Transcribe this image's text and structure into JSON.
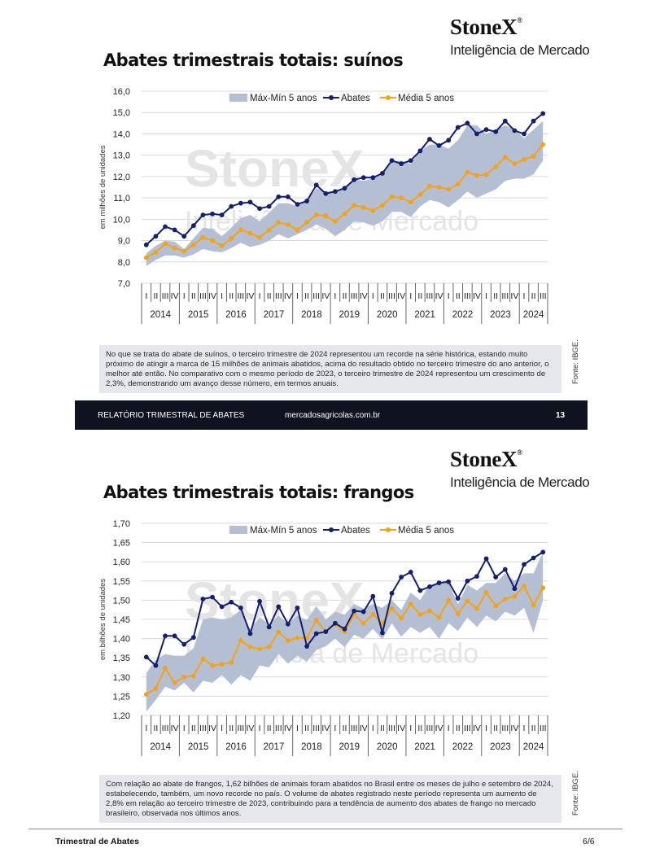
{
  "brand": {
    "name": "StoneX",
    "mark": "®",
    "tagline": "Inteligência de Mercado"
  },
  "colors": {
    "band": "#b4bfd3",
    "abates": "#14206e",
    "media": "#f3a31b",
    "footer_bg": "#0f1320",
    "note_bg": "#e5e7ea"
  },
  "chart1": {
    "title": "Abates trimestrais totais: suínos",
    "ylabel": "em milhões de unidades",
    "watermark_line1": "StoneX",
    "watermark_line2": "Inteligência de Mercado",
    "note": "No que se trata do abate de suínos, o terceiro trimestre de 2024 representou um recorde na série histórica, estando muito próximo de atingir a marca de 15 milhões de animais abatidos, acima do resultado obtido no terceiro trimestre do ano anterior, o melhor até então. No comparativo com o mesmo período de 2023, o terceiro trimestre de 2024 representou um crescimento de 2,3%, demonstrando um avanço desse número, em termos anuais.",
    "source": "Fonte: IBGE."
  },
  "footer1": {
    "left": "RELATÓRIO TRIMESTRAL DE ABATES",
    "center": "mercadosagricolas.com.br",
    "page": "13"
  },
  "chart2": {
    "title": "Abates trimestrais totais: frangos",
    "ylabel": "em bilhões de unidades",
    "watermark_line1": "StoneX",
    "watermark_line2": "Inteligência de Mercado",
    "note": "Com relação ao abate de frangos, 1,62 bilhões de animais foram abatidos no Brasil entre os meses de julho e setembro de 2024, estabelecendo, também, um novo recorde no país. O volume de abates registrado neste período representa um aumento de 2,8% em relação ao terceiro trimestre de 2023, contribuindo para a tendência de aumento dos abates de frango no mercado brasileiro, observada nos últimos anos.",
    "source": "Fonte: IBGE."
  },
  "footer2": {
    "left": "Trimestral de Abates",
    "page": "6/6"
  },
  "chart_data": [
    {
      "type": "line",
      "title": "Abates trimestrais totais: suínos",
      "ylabel": "em milhões de unidades",
      "ylim": [
        7.0,
        16.0
      ],
      "yticks": [
        "7,0",
        "8,0",
        "9,0",
        "10,0",
        "11,0",
        "12,0",
        "13,0",
        "14,0",
        "15,0",
        "16,0"
      ],
      "years": [
        "2014",
        "2015",
        "2016",
        "2017",
        "2018",
        "2019",
        "2020",
        "2021",
        "2022",
        "2023",
        "2024"
      ],
      "quarters": [
        "I",
        "II",
        "III",
        "IV"
      ],
      "legend": {
        "band": "Máx-Mín 5 anos",
        "abates": "Abates",
        "media": "Média 5 anos"
      },
      "legend_position": "top",
      "grid": true,
      "abates": [
        8.8,
        9.2,
        9.65,
        9.5,
        9.2,
        9.7,
        10.2,
        10.25,
        10.2,
        10.6,
        10.75,
        10.8,
        10.5,
        10.6,
        11.05,
        11.05,
        10.7,
        10.85,
        11.6,
        11.2,
        11.3,
        11.45,
        11.85,
        11.95,
        11.95,
        12.15,
        12.75,
        12.6,
        12.75,
        13.2,
        13.75,
        13.45,
        13.7,
        14.3,
        14.5,
        14.0,
        14.2,
        14.1,
        14.6,
        14.15,
        14.0,
        14.6,
        14.95
      ],
      "media": [
        8.2,
        8.45,
        8.85,
        8.65,
        8.5,
        8.8,
        9.15,
        9.0,
        8.75,
        9.1,
        9.5,
        9.35,
        9.15,
        9.5,
        9.85,
        9.75,
        9.5,
        9.85,
        10.2,
        10.15,
        9.9,
        10.25,
        10.65,
        10.55,
        10.4,
        10.65,
        11.05,
        11.0,
        10.8,
        11.15,
        11.55,
        11.5,
        11.4,
        11.65,
        12.2,
        12.05,
        12.1,
        12.45,
        12.9,
        12.6,
        12.8,
        12.95,
        13.5
      ],
      "band_max": [
        8.4,
        8.75,
        9.0,
        8.95,
        8.6,
        9.1,
        9.6,
        9.55,
        9.2,
        9.6,
        10.05,
        10.2,
        9.9,
        10.3,
        10.75,
        10.75,
        10.6,
        10.85,
        11.45,
        11.3,
        11.3,
        11.5,
        11.85,
        11.8,
        11.9,
        12.1,
        12.7,
        12.75,
        12.6,
        13.2,
        13.5,
        13.5,
        13.3,
        13.7,
        14.4,
        14.4,
        14.0,
        14.2,
        14.4,
        14.2,
        13.8,
        14.2,
        14.6
      ],
      "band_min": [
        7.8,
        8.1,
        8.3,
        8.3,
        8.2,
        8.35,
        8.6,
        8.5,
        8.45,
        8.65,
        8.9,
        8.7,
        8.8,
        9.0,
        9.3,
        9.1,
        9.3,
        9.5,
        9.75,
        9.55,
        9.2,
        9.5,
        9.9,
        9.85,
        9.7,
        9.9,
        10.35,
        10.35,
        10.1,
        10.6,
        10.9,
        10.8,
        10.55,
        10.9,
        11.3,
        11.0,
        11.2,
        11.4,
        11.8,
        11.9,
        11.9,
        12.1,
        12.75
      ]
    },
    {
      "type": "line",
      "title": "Abates trimestrais totais: frangos",
      "ylabel": "em bilhões de unidades",
      "ylim": [
        1.2,
        1.7
      ],
      "yticks": [
        "1,20",
        "1,25",
        "1,30",
        "1,35",
        "1,40",
        "1,45",
        "1,50",
        "1,55",
        "1,60",
        "1,65",
        "1,70"
      ],
      "years": [
        "2014",
        "2015",
        "2016",
        "2017",
        "2018",
        "2019",
        "2020",
        "2021",
        "2022",
        "2023",
        "2024"
      ],
      "quarters": [
        "I",
        "II",
        "III",
        "IV"
      ],
      "legend": {
        "band": "Máx-Mín 5 anos",
        "abates": "Abates",
        "media": "Média 5 anos"
      },
      "legend_position": "top",
      "grid": true,
      "abates": [
        1.352,
        1.33,
        1.407,
        1.407,
        1.385,
        1.403,
        1.503,
        1.508,
        1.483,
        1.495,
        1.48,
        1.413,
        1.497,
        1.43,
        1.483,
        1.438,
        1.48,
        1.38,
        1.413,
        1.418,
        1.44,
        1.425,
        1.472,
        1.47,
        1.51,
        1.415,
        1.518,
        1.56,
        1.573,
        1.525,
        1.535,
        1.545,
        1.548,
        1.505,
        1.55,
        1.562,
        1.608,
        1.56,
        1.58,
        1.53,
        1.593,
        1.61,
        1.625
      ],
      "media": [
        1.255,
        1.27,
        1.323,
        1.285,
        1.3,
        1.303,
        1.347,
        1.33,
        1.333,
        1.338,
        1.395,
        1.378,
        1.373,
        1.378,
        1.417,
        1.395,
        1.402,
        1.402,
        1.448,
        1.418,
        1.438,
        1.418,
        1.463,
        1.44,
        1.463,
        1.44,
        1.478,
        1.453,
        1.49,
        1.463,
        1.472,
        1.455,
        1.5,
        1.465,
        1.498,
        1.478,
        1.52,
        1.485,
        1.503,
        1.51,
        1.537,
        1.487,
        1.532
      ],
      "band_max": [
        1.31,
        1.345,
        1.36,
        1.355,
        1.355,
        1.375,
        1.45,
        1.455,
        1.45,
        1.455,
        1.475,
        1.425,
        1.455,
        1.438,
        1.46,
        1.44,
        1.46,
        1.448,
        1.485,
        1.45,
        1.47,
        1.462,
        1.49,
        1.478,
        1.49,
        1.48,
        1.5,
        1.475,
        1.52,
        1.5,
        1.54,
        1.545,
        1.545,
        1.49,
        1.54,
        1.525,
        1.545,
        1.545,
        1.57,
        1.55,
        1.57,
        1.57,
        1.625
      ],
      "band_min": [
        1.21,
        1.24,
        1.275,
        1.265,
        1.285,
        1.26,
        1.29,
        1.285,
        1.305,
        1.28,
        1.305,
        1.29,
        1.33,
        1.325,
        1.36,
        1.335,
        1.355,
        1.34,
        1.37,
        1.38,
        1.4,
        1.378,
        1.41,
        1.4,
        1.425,
        1.398,
        1.44,
        1.405,
        1.43,
        1.415,
        1.43,
        1.4,
        1.44,
        1.42,
        1.455,
        1.43,
        1.46,
        1.445,
        1.47,
        1.46,
        1.48,
        1.415,
        1.5
      ]
    }
  ]
}
